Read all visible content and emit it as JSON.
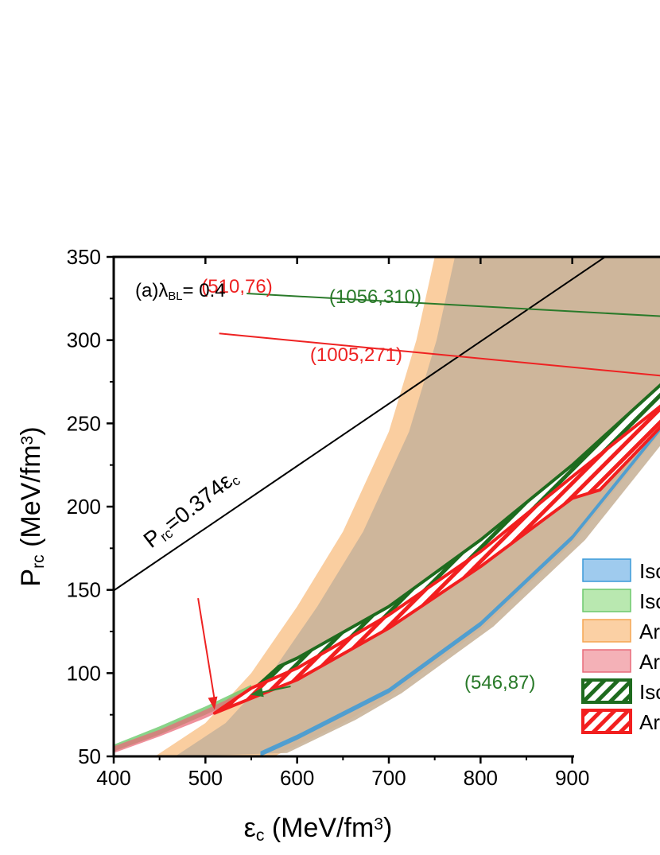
{
  "chart_data": {
    "type": "area",
    "panel_label": "(a)",
    "lambda_symbol": "λ",
    "lambda_sub": "BL",
    "lambda_value": "= 0.4",
    "xlabel_symbol": "ε",
    "xlabel_sub": "c",
    "xlabel_rest": " (MeV/fm",
    "xlabel_sup": "3",
    "xlabel_close": ")",
    "ylabel_symbol": "P",
    "ylabel_sub": "rc",
    "ylabel_rest": " (MeV/fm",
    "ylabel_sup": "3",
    "ylabel_close": ")",
    "xlim": [
      400,
      1000
    ],
    "ylim": [
      50,
      350
    ],
    "x_ticks": [
      400,
      500,
      600,
      700,
      800,
      900
    ],
    "y_ticks": [
      50,
      100,
      150,
      200,
      250,
      300,
      350
    ],
    "x_tick_labels": [
      "400",
      "500",
      "600",
      "700",
      "800",
      "900"
    ],
    "y_tick_labels": [
      "50",
      "100",
      "150",
      "200",
      "250",
      "300",
      "350"
    ],
    "reference_line": {
      "label_main": "P",
      "label_sub": "rc",
      "label_rest": "=0.374ε",
      "label_sub2": "c",
      "slope": 0.374,
      "color": "#000000"
    },
    "colors": {
      "blue": "#3a9ad9",
      "green": "#6cc96c",
      "orange": "#f5a552",
      "pink": "#e86b7a",
      "dark_green": "#1e6b1e",
      "red": "#f21f1f",
      "overlap": "#c9b49a",
      "ann_green": "#2a7a2a",
      "ann_red": "#ee2222"
    },
    "series": [
      {
        "name_visible": "Iso",
        "color": "#3a9ad9",
        "style": "fill",
        "lower": [
          [
            560,
            50
          ],
          [
            600,
            60
          ],
          [
            700,
            88
          ],
          [
            800,
            128
          ],
          [
            900,
            180
          ],
          [
            1000,
            248
          ]
        ],
        "upper": [
          [
            560,
            50
          ],
          [
            600,
            60
          ],
          [
            700,
            88
          ],
          [
            800,
            128
          ],
          [
            900,
            180
          ],
          [
            1000,
            248
          ]
        ]
      },
      {
        "name_visible": "Iso",
        "color": "#6cc96c",
        "style": "fill",
        "lower": [
          [
            400,
            53
          ],
          [
            450,
            63
          ],
          [
            500,
            75
          ],
          [
            550,
            88
          ]
        ],
        "upper": [
          [
            400,
            57
          ],
          [
            450,
            68
          ],
          [
            500,
            80
          ],
          [
            550,
            93
          ]
        ]
      },
      {
        "name_visible": "An",
        "color": "#f5a552",
        "style": "fill",
        "left_edge": [
          [
            445,
            50
          ],
          [
            500,
            70
          ],
          [
            550,
            100
          ],
          [
            600,
            140
          ],
          [
            650,
            185
          ],
          [
            700,
            245
          ],
          [
            730,
            300
          ],
          [
            750,
            350
          ]
        ],
        "right_edge": [
          [
            575,
            50
          ],
          [
            650,
            70
          ],
          [
            700,
            86
          ],
          [
            800,
            126
          ],
          [
            900,
            178
          ],
          [
            1000,
            247
          ]
        ]
      },
      {
        "name_visible": "An",
        "color": "#e86b7a",
        "style": "fill",
        "lower": [
          [
            400,
            52
          ],
          [
            450,
            62
          ],
          [
            500,
            73
          ],
          [
            550,
            86
          ]
        ],
        "upper": [
          [
            400,
            56
          ],
          [
            450,
            66
          ],
          [
            500,
            78
          ],
          [
            550,
            91
          ]
        ]
      },
      {
        "name_visible": "Iso",
        "color": "#1e6b1e",
        "style": "hatch",
        "lower": [
          [
            546,
            87
          ],
          [
            600,
            100
          ],
          [
            700,
            132
          ],
          [
            800,
            170
          ],
          [
            900,
            214
          ],
          [
            1000,
            262
          ]
        ],
        "upper": [
          [
            580,
            104
          ],
          [
            600,
            109
          ],
          [
            700,
            140
          ],
          [
            800,
            180
          ],
          [
            900,
            225
          ],
          [
            1000,
            275
          ]
        ]
      },
      {
        "name_visible": "An",
        "color": "#f21f1f",
        "style": "hatch",
        "lower": [
          [
            510,
            76
          ],
          [
            600,
            96
          ],
          [
            700,
            127
          ],
          [
            800,
            164
          ],
          [
            900,
            205
          ],
          [
            930,
            210
          ],
          [
            1000,
            250
          ]
        ],
        "upper": [
          [
            510,
            76
          ],
          [
            550,
            91
          ],
          [
            600,
            103
          ],
          [
            700,
            135
          ],
          [
            800,
            173
          ],
          [
            900,
            218
          ],
          [
            1000,
            262
          ]
        ]
      }
    ],
    "annotations": [
      {
        "text": "(1056,310)",
        "color": "#2a7a2a",
        "from": [
          545,
          328
        ],
        "to": [
          1000,
          314
        ]
      },
      {
        "text": "(1005,271)",
        "color": "#ee2222",
        "from": [
          515,
          304
        ],
        "to": [
          1000,
          278
        ]
      },
      {
        "text": "(510,76)",
        "color": "#ee2222",
        "from": [
          492,
          145
        ],
        "to": [
          510,
          78
        ]
      },
      {
        "text": "(546,87)",
        "color": "#2a7a2a",
        "from": [
          690,
          104
        ],
        "to": [
          549,
          87
        ]
      }
    ],
    "legend": {
      "position": "right",
      "entries": [
        {
          "label": "Isc",
          "swatch": "#9fcbee",
          "border": "#3a9ad9",
          "style": "fill"
        },
        {
          "label": "Isc",
          "swatch": "#b9e8b0",
          "border": "#6cc96c",
          "style": "fill"
        },
        {
          "label": "Ar",
          "swatch": "#fbd0a4",
          "border": "#f5a552",
          "style": "fill"
        },
        {
          "label": "Ar",
          "swatch": "#f4b1b7",
          "border": "#e86b7a",
          "style": "fill"
        },
        {
          "label": "Isc",
          "swatch": "#1e6b1e",
          "border": "#1e6b1e",
          "style": "hatch"
        },
        {
          "label": "Ar",
          "swatch": "#f21f1f",
          "border": "#f21f1f",
          "style": "hatch"
        }
      ]
    }
  }
}
